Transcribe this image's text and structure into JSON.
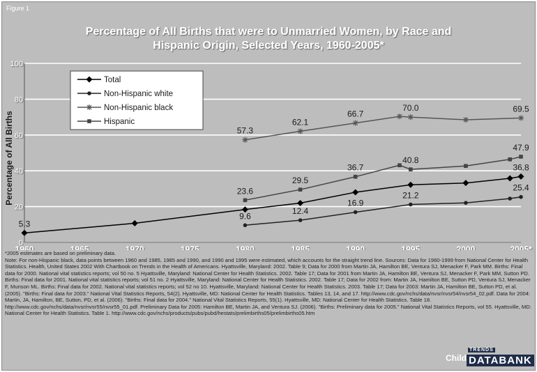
{
  "figure_label": "Figure 1",
  "chart_data": {
    "type": "line",
    "title": "Percentage of All Births that were to Unmarried Women, by Race and Hispanic Origin, Selected Years, 1960-2005*",
    "xlabel": "",
    "ylabel": "Percentage of All Births",
    "xlim": [
      1960,
      2005
    ],
    "ylim": [
      0,
      100
    ],
    "y_ticks": [
      0,
      20,
      40,
      60,
      80,
      100
    ],
    "x_ticks": [
      1960,
      1965,
      1970,
      1975,
      1980,
      1985,
      1990,
      1995,
      2000,
      2005
    ],
    "x_tick_labels": [
      "1960",
      "1965",
      "1970",
      "1975",
      "1980",
      "1985",
      "1990",
      "1995",
      "2000",
      "2005*"
    ],
    "grid": "horizontal",
    "legend_position": "top-left",
    "series": [
      {
        "name": "Total",
        "color": "#000000",
        "marker": "diamond",
        "points": [
          [
            1960,
            5.3
          ],
          [
            1970,
            10.7
          ],
          [
            1980,
            18.4
          ],
          [
            1985,
            22.0
          ],
          [
            1990,
            28.0
          ],
          [
            1995,
            32.2
          ],
          [
            2000,
            33.2
          ],
          [
            2004,
            35.8
          ],
          [
            2005,
            36.8
          ]
        ]
      },
      {
        "name": "Non-Hispanic white",
        "color": "#222222",
        "marker": "circle",
        "points": [
          [
            1980,
            9.6
          ],
          [
            1985,
            12.4
          ],
          [
            1990,
            16.9
          ],
          [
            1995,
            21.2
          ],
          [
            2000,
            22.1
          ],
          [
            2004,
            24.5
          ],
          [
            2005,
            25.4
          ]
        ]
      },
      {
        "name": "Non-Hispanic black",
        "color": "#555555",
        "marker": "star",
        "points": [
          [
            1980,
            57.3
          ],
          [
            1985,
            62.1
          ],
          [
            1990,
            66.7
          ],
          [
            1994,
            70.4
          ],
          [
            1995,
            70.0
          ],
          [
            2000,
            68.5
          ],
          [
            2005,
            69.5
          ]
        ]
      },
      {
        "name": "Hispanic",
        "color": "#444444",
        "marker": "square",
        "points": [
          [
            1980,
            23.6
          ],
          [
            1985,
            29.5
          ],
          [
            1990,
            36.7
          ],
          [
            1994,
            43.1
          ],
          [
            1995,
            40.8
          ],
          [
            2000,
            42.7
          ],
          [
            2004,
            46.4
          ],
          [
            2005,
            47.9
          ]
        ]
      }
    ],
    "data_labels": [
      {
        "x": 1960,
        "y": 5.3,
        "text": "5.3"
      },
      {
        "x": 1980,
        "y": 9.6,
        "text": "9.6"
      },
      {
        "x": 1985,
        "y": 12.4,
        "text": "12.4"
      },
      {
        "x": 1990,
        "y": 16.9,
        "text": "16.9"
      },
      {
        "x": 1995,
        "y": 21.2,
        "text": "21.2"
      },
      {
        "x": 2005,
        "y": 25.4,
        "text": "25.4"
      },
      {
        "x": 1980,
        "y": 23.6,
        "text": "23.6"
      },
      {
        "x": 1985,
        "y": 29.5,
        "text": "29.5"
      },
      {
        "x": 1990,
        "y": 36.7,
        "text": "36.7"
      },
      {
        "x": 1995,
        "y": 40.8,
        "text": "40.8"
      },
      {
        "x": 2005,
        "y": 47.9,
        "text": "47.9"
      },
      {
        "x": 2005,
        "y": 36.8,
        "text": "36.8"
      },
      {
        "x": 1980,
        "y": 57.3,
        "text": "57.3"
      },
      {
        "x": 1985,
        "y": 62.1,
        "text": "62.1"
      },
      {
        "x": 1990,
        "y": 66.7,
        "text": "66.7"
      },
      {
        "x": 1995,
        "y": 70.0,
        "text": "70.0"
      },
      {
        "x": 2005,
        "y": 69.5,
        "text": "69.5"
      }
    ]
  },
  "notes": {
    "estimate": "*2005 estimates are based on preliminary data.",
    "body": "Note: For non-Hispanic black, data points between 1960 and 1985, 1985 and 1990, and 1990 and 1995 were estimated, which accounts for the straight trend line. Sources: Data for 1960-1999 from National Center for Health Statistics. Health, United States 2002 With Chartbook on Trends in the Health of Americans. Hyattsville, Maryland: 2002. Table 9; Data for 2000 from Martin JA, Hamilton BE, Ventura SJ, Menacker F, Park MM. Births: Final data for 2000. National vital statistics reports; vol 50 no. 5 Hyattsville, Maryland: National Center for Health Statistics. 2002. Table 17; Data for 2001 from Martin JA, Hamilton BE, Ventura SJ, Menacker F, Park MM, Sutton PD. Births: Final data for 2001. National vital statistics reports; vol 51 no. 2 Hyattsville, Maryland: National Center for Health Statistics. 2002. Table 17; Data for 2002 from: Martin JA, Hamilton BE, Sutton PD, Ventura SJ, Menacker F, Munson ML. Births: Final data for 2002. National vital statistics reports; vol 52 no 10. Hyattsville, Maryland: National Center for Health Statistics. 2003. Table 17; Data for 2003: Martin JA, Hamilton BE, Sutton PD, et al. (2005). \"Births: Final data for 2003.\" National Vital Statistics Reports, 54(2). Hyattsville, MD: National Center for Health Statistics. Tables 13, 14, and 17. http://www.cdc.gov/nchs/data/nvsr/nvsr54/nvsr54_02.pdf. Data for 2004: Martin, JA, Hamilton, BE, Sutton, PD, et al. (2006). \"Births: Final data for 2004.\" National Vital Statistics Reports, 55(1). Hyattsville, MD: National Center for Health Statistics. Table 18. http://www.cdc.gov/nchs/data/nvsr/nvsr55/nvsr55_01.pdf. Preliminary Data for 2005: Hamilton BE, Martin JA, and Ventura SJ. (2006). \"Births: Preliminary data for 2005.\" National Vital Statistics Reports, vol 55. Hyattsville, MD: National Center for Health Statistics. Table 1. http://www.cdc.gov/nchs/products/pubs/pubd/hestats/prelimbirths05/prelimbirths05.htm"
  },
  "brand": {
    "child": "Child",
    "trends": "TRENDS",
    "databank": "DATABANK"
  },
  "colors": {
    "background": "#bdbdbd",
    "title": "#ffffff",
    "grid": "#ffffff",
    "brand_navy": "#1f2d4a"
  }
}
